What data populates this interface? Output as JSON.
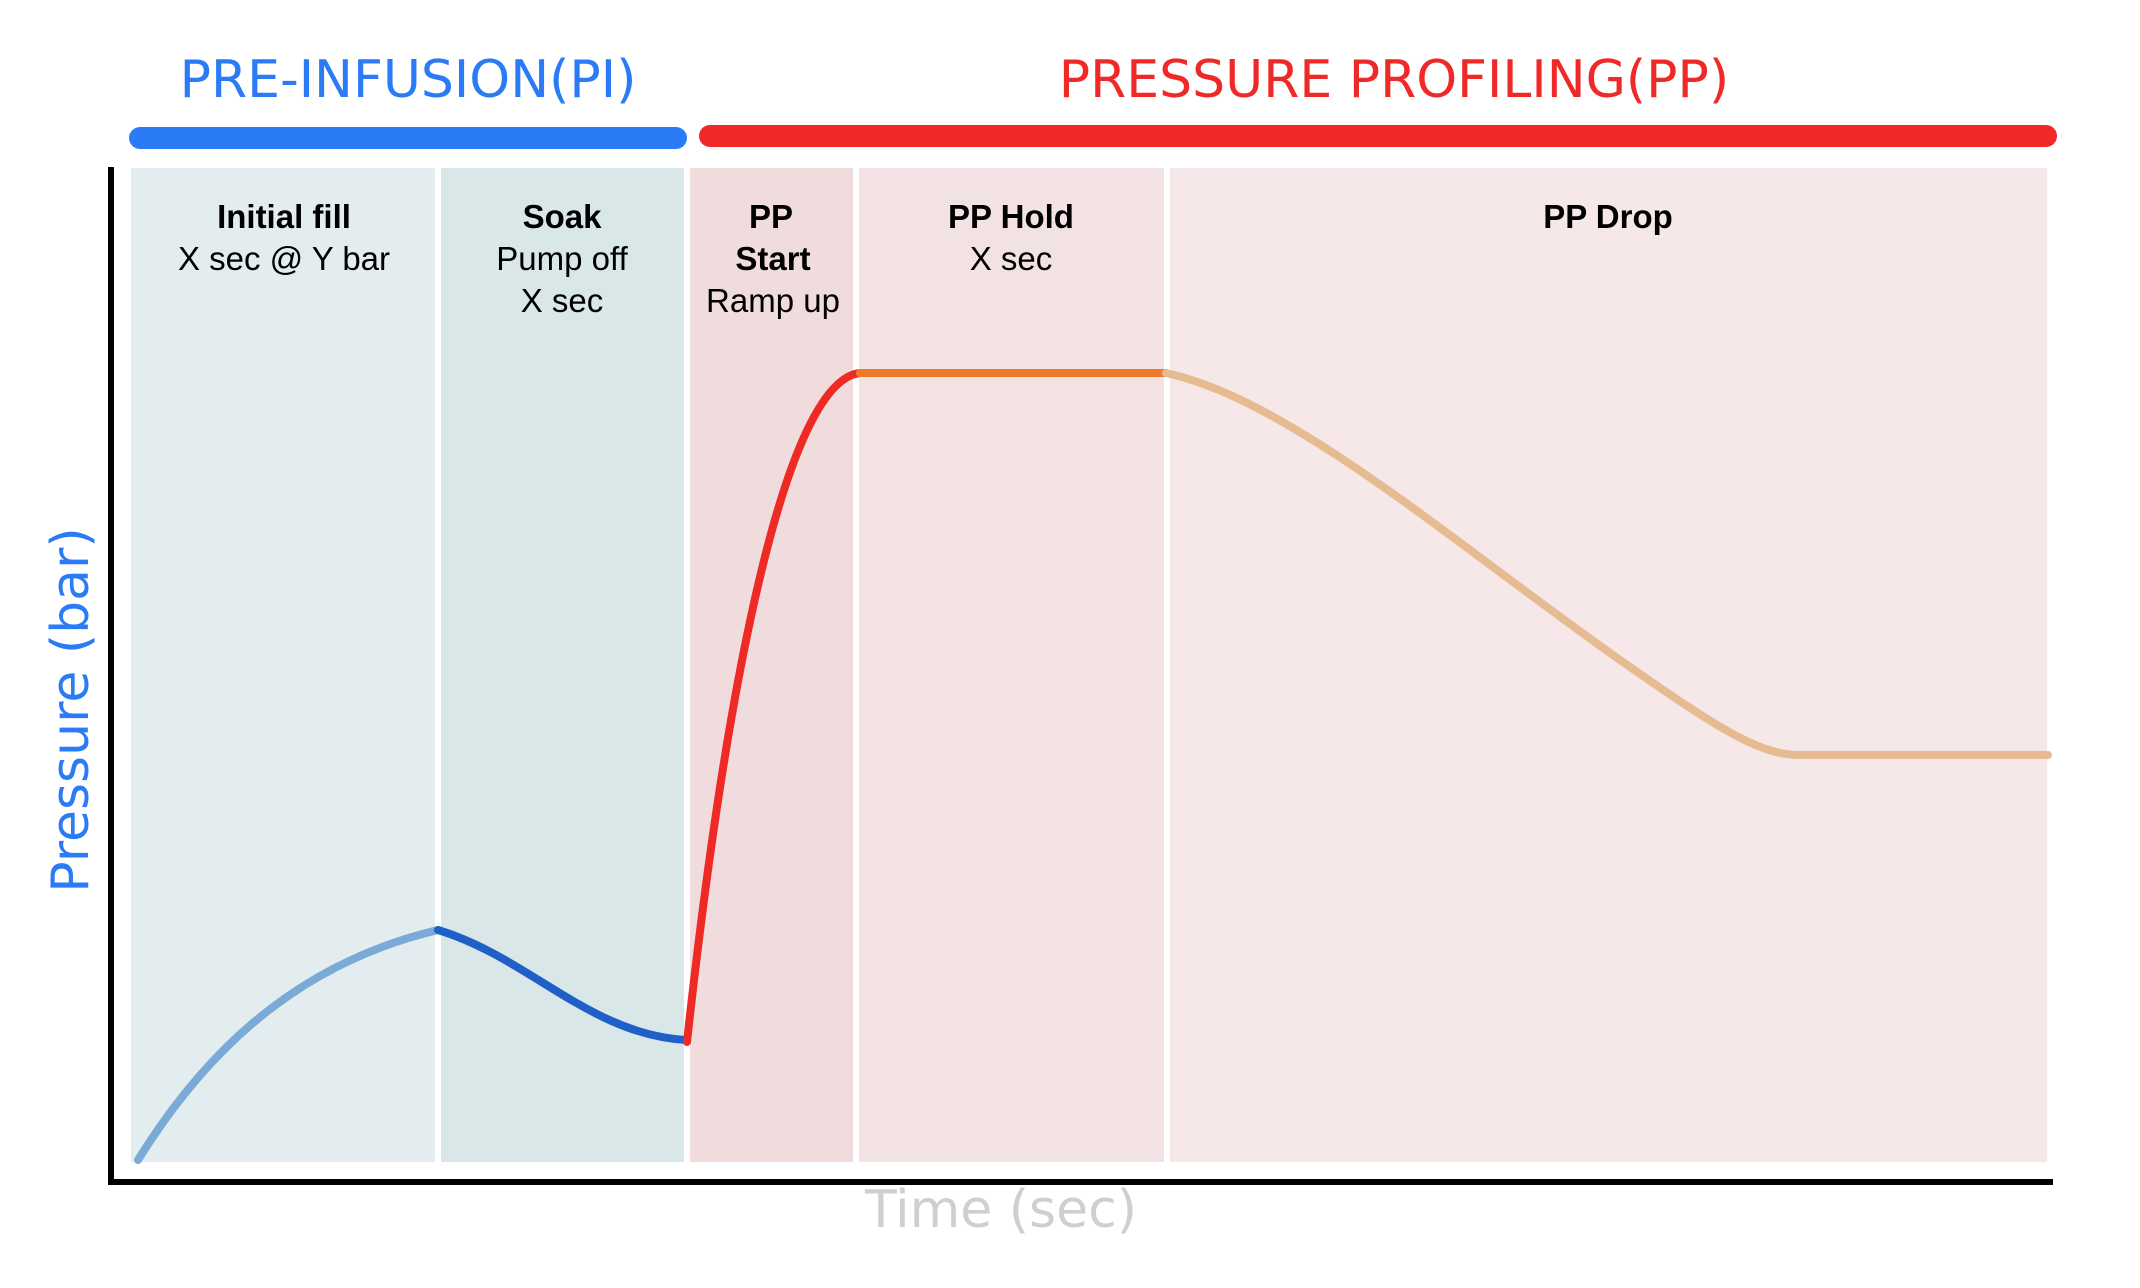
{
  "phases": [
    {
      "id": "pi",
      "title": "PRE-INFUSION(PI)",
      "color": "#2a7bf5"
    },
    {
      "id": "pp",
      "title": "PRESSURE PROFILING(PP)",
      "color": "#ef2828"
    }
  ],
  "axes": {
    "x_label": "Time (sec)",
    "y_label": "Pressure (bar)",
    "x_label_color": "#cfcfcf",
    "y_label_color": "#2a7bf5"
  },
  "stages": [
    {
      "id": "initial-fill",
      "bold": [
        "Initial fill"
      ],
      "text": [
        "X sec @ Y bar"
      ],
      "bg": "#e3ecef",
      "curve_color": "#7aaad6"
    },
    {
      "id": "soak",
      "bold": [
        "Soak"
      ],
      "text": [
        "Pump off",
        "X sec"
      ],
      "bg": "#d9e7e9",
      "curve_color": "#1f5fc8"
    },
    {
      "id": "pp-start",
      "bold": [
        "PP",
        "Start"
      ],
      "text": [
        "Ramp up"
      ],
      "bg": "#f0dcdd",
      "curve_color": "#ee2a24"
    },
    {
      "id": "pp-hold",
      "bold": [
        "PP Hold"
      ],
      "text": [
        "X sec"
      ],
      "bg": "#f3e2e3",
      "curve_color": "#f07a2a"
    },
    {
      "id": "pp-drop",
      "bold": [
        "PP Drop"
      ],
      "text": [],
      "bg": "#f6e7e8",
      "curve_color": "#e6bb92"
    }
  ]
}
